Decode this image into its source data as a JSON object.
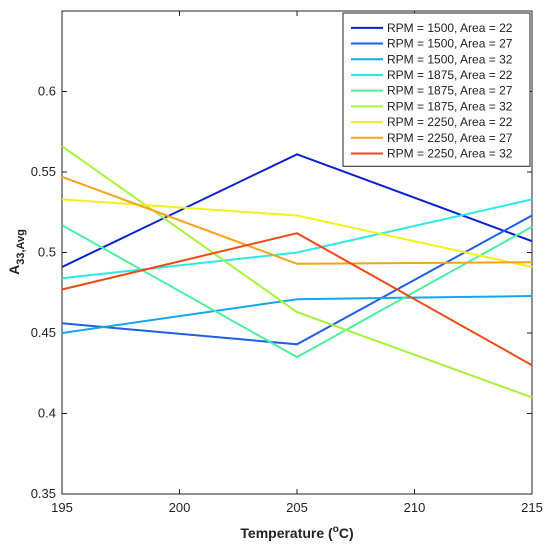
{
  "chart_data": {
    "type": "line",
    "title": "",
    "xlabel": "Temperature (",
    "xlabel_sup": "o",
    "xlabel_tail": "C)",
    "ylabel": "A",
    "ylabel_sub": "33,Avg",
    "xlim": [
      195,
      215
    ],
    "ylim": [
      0.35,
      0.65
    ],
    "xticks": [
      "195",
      "200",
      "205",
      "210",
      "215"
    ],
    "yticks": [
      "0.35",
      "0.4",
      "0.45",
      "0.5",
      "0.55",
      "0.6"
    ],
    "grid": false,
    "legend_position": "top-right",
    "x": [
      195,
      205,
      215
    ],
    "series": [
      {
        "name": "RPM = 1500, Area = 22",
        "color": "#0a1fd0",
        "values": [
          0.491,
          0.561,
          0.507
        ]
      },
      {
        "name": "RPM = 1500, Area = 27",
        "color": "#1f5ee6",
        "values": [
          0.456,
          0.443,
          0.523
        ]
      },
      {
        "name": "RPM = 1500, Area = 32",
        "color": "#14a6ea",
        "values": [
          0.45,
          0.471,
          0.473
        ]
      },
      {
        "name": "RPM = 1875, Area = 22",
        "color": "#2ee8e8",
        "values": [
          0.484,
          0.5,
          0.533
        ]
      },
      {
        "name": "RPM = 1875, Area = 27",
        "color": "#4bf0a0",
        "values": [
          0.517,
          0.435,
          0.516
        ]
      },
      {
        "name": "RPM = 1875, Area = 32",
        "color": "#a6f23a",
        "values": [
          0.566,
          0.463,
          0.41
        ]
      },
      {
        "name": "RPM = 2250, Area = 22",
        "color": "#f2f21a",
        "values": [
          0.533,
          0.523,
          0.491
        ]
      },
      {
        "name": "RPM = 2250, Area = 27",
        "color": "#f7a21a",
        "values": [
          0.547,
          0.493,
          0.494
        ]
      },
      {
        "name": "RPM = 2250, Area = 32",
        "color": "#f04a14",
        "values": [
          0.477,
          0.512,
          0.43
        ]
      }
    ]
  }
}
